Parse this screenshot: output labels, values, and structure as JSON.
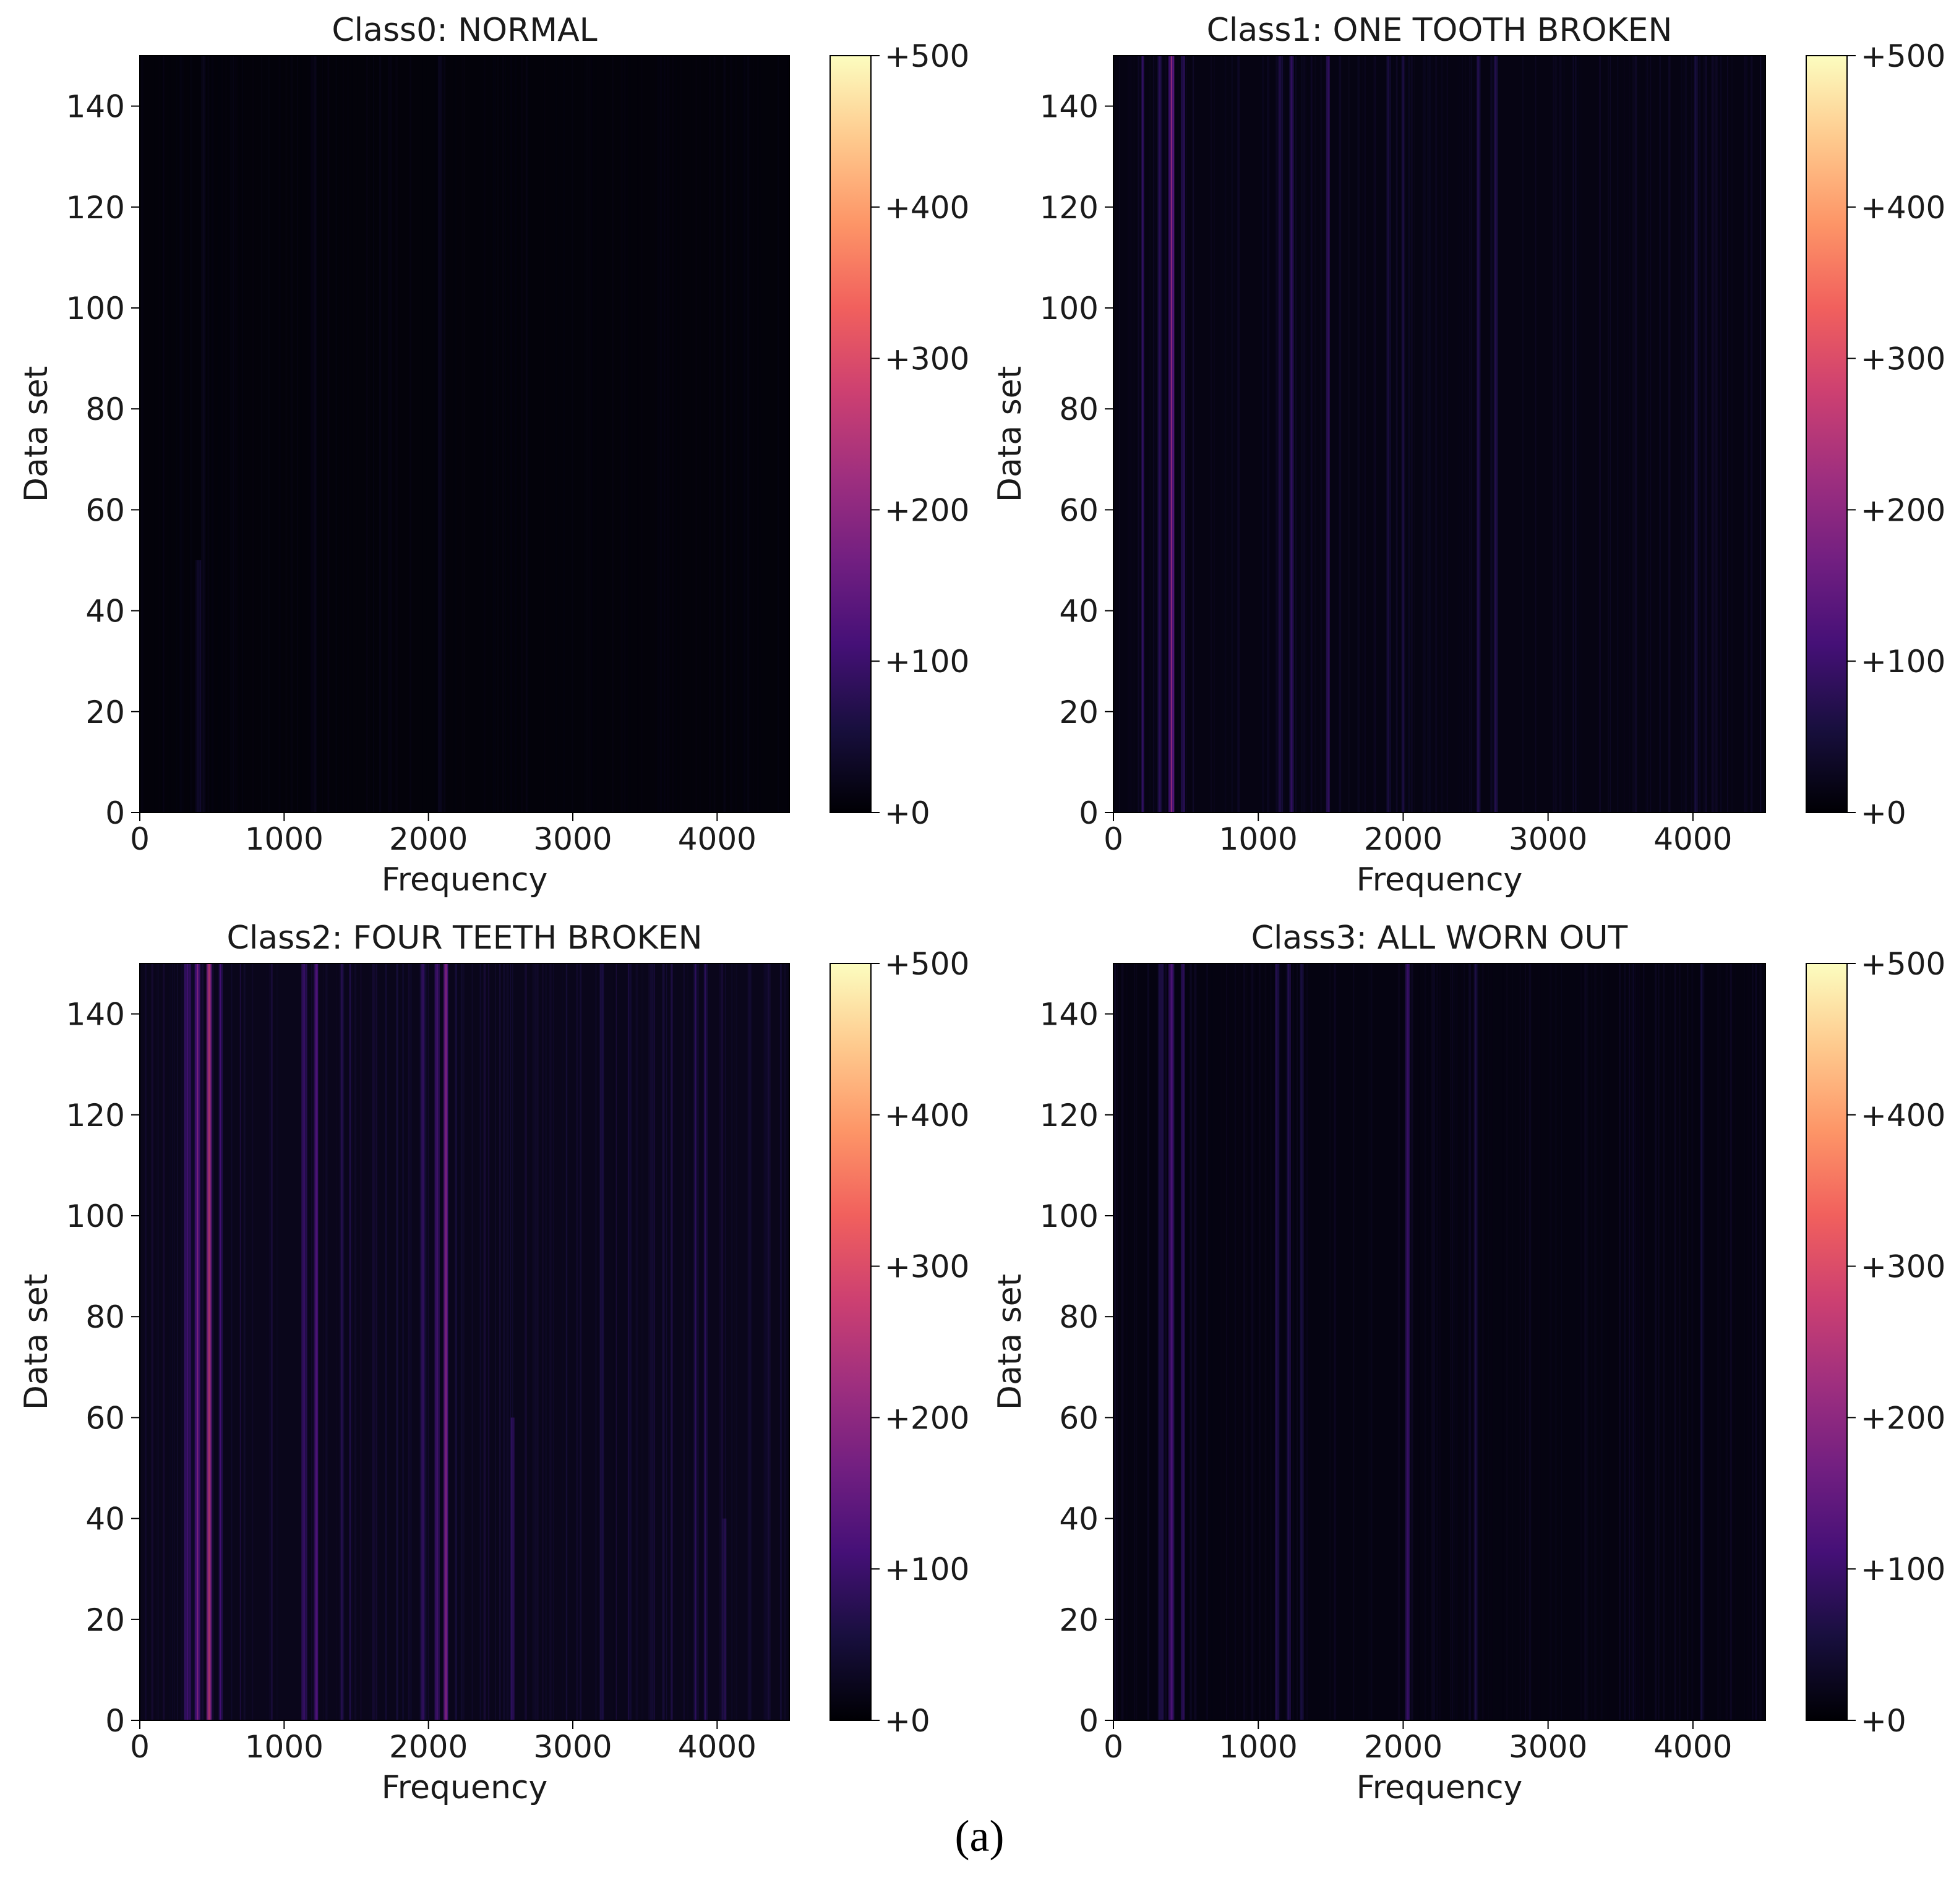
{
  "caption": "(a)",
  "colormap": {
    "name": "magma",
    "stops": [
      "#000004",
      "#180f3e",
      "#451077",
      "#721f81",
      "#9f2f7f",
      "#cd4071",
      "#f1605d",
      "#fd9567",
      "#fec98d",
      "#fcfdbf"
    ]
  },
  "chart_data": [
    {
      "type": "heatmap",
      "title": "Class0: NORMAL",
      "xlabel": "Frequency",
      "ylabel": "Data set",
      "xlim": [
        0,
        4500
      ],
      "ylim": [
        0,
        150
      ],
      "xticks": [
        0,
        1000,
        2000,
        3000,
        4000
      ],
      "yticks": [
        0,
        20,
        40,
        60,
        80,
        100,
        120,
        140
      ],
      "color_range": [
        0,
        500
      ],
      "colorbar_ticks": [
        "+0",
        "+100",
        "+200",
        "+300",
        "+400",
        "+500"
      ],
      "background_level": 6,
      "bands": [
        {
          "freq": 410,
          "width": 50,
          "level": 50,
          "ymax": 50
        },
        {
          "freq": 440,
          "width": 30,
          "level": 35,
          "ymax": 150
        },
        {
          "freq": 1210,
          "width": 25,
          "level": 30,
          "ymax": 150
        },
        {
          "freq": 2080,
          "width": 30,
          "level": 35,
          "ymax": 150
        }
      ]
    },
    {
      "type": "heatmap",
      "title": "Class1: ONE TOOTH BROKEN",
      "xlabel": "Frequency",
      "ylabel": "Data set",
      "xlim": [
        0,
        4500
      ],
      "ylim": [
        0,
        150
      ],
      "xticks": [
        0,
        1000,
        2000,
        3000,
        4000
      ],
      "yticks": [
        0,
        20,
        40,
        60,
        80,
        100,
        120,
        140
      ],
      "color_range": [
        0,
        500
      ],
      "colorbar_ticks": [
        "+0",
        "+100",
        "+200",
        "+300",
        "+400",
        "+500"
      ],
      "background_level": 14,
      "bands": [
        {
          "freq": 200,
          "width": 20,
          "level": 110,
          "ymax": 150
        },
        {
          "freq": 320,
          "width": 30,
          "level": 90,
          "ymax": 150
        },
        {
          "freq": 400,
          "width": 40,
          "level": 230,
          "ymax": 150
        },
        {
          "freq": 480,
          "width": 30,
          "level": 110,
          "ymax": 150
        },
        {
          "freq": 1150,
          "width": 40,
          "level": 80,
          "ymax": 150
        },
        {
          "freq": 1230,
          "width": 30,
          "level": 100,
          "ymax": 150
        },
        {
          "freq": 1480,
          "width": 25,
          "level": 110,
          "ymax": 150
        },
        {
          "freq": 1900,
          "width": 30,
          "level": 70,
          "ymax": 150
        },
        {
          "freq": 2000,
          "width": 25,
          "level": 75,
          "ymax": 150
        },
        {
          "freq": 2520,
          "width": 25,
          "level": 90,
          "ymax": 150
        },
        {
          "freq": 2640,
          "width": 30,
          "level": 100,
          "ymax": 150
        },
        {
          "freq": 4020,
          "width": 25,
          "level": 80,
          "ymax": 150
        }
      ]
    },
    {
      "type": "heatmap",
      "title": "Class2: FOUR TEETH BROKEN",
      "xlabel": "Frequency",
      "ylabel": "Data set",
      "xlim": [
        0,
        4500
      ],
      "ylim": [
        0,
        150
      ],
      "xticks": [
        0,
        1000,
        2000,
        3000,
        4000
      ],
      "yticks": [
        0,
        20,
        40,
        60,
        80,
        100,
        120,
        140
      ],
      "color_range": [
        0,
        500
      ],
      "colorbar_ticks": [
        "+0",
        "+100",
        "+200",
        "+300",
        "+400",
        "+500"
      ],
      "background_level": 22,
      "bands": [
        {
          "freq": 330,
          "width": 50,
          "level": 130,
          "ymax": 150
        },
        {
          "freq": 400,
          "width": 40,
          "level": 220,
          "ymax": 150
        },
        {
          "freq": 480,
          "width": 35,
          "level": 300,
          "ymax": 150
        },
        {
          "freq": 560,
          "width": 30,
          "level": 120,
          "ymax": 150
        },
        {
          "freq": 1140,
          "width": 40,
          "level": 120,
          "ymax": 150
        },
        {
          "freq": 1220,
          "width": 30,
          "level": 160,
          "ymax": 150
        },
        {
          "freq": 1400,
          "width": 30,
          "level": 90,
          "ymax": 150
        },
        {
          "freq": 1960,
          "width": 40,
          "level": 110,
          "ymax": 150
        },
        {
          "freq": 2060,
          "width": 35,
          "level": 150,
          "ymax": 150
        },
        {
          "freq": 2120,
          "width": 30,
          "level": 220,
          "ymax": 150
        },
        {
          "freq": 2580,
          "width": 30,
          "level": 120,
          "ymax": 60
        },
        {
          "freq": 3200,
          "width": 30,
          "level": 90,
          "ymax": 150
        },
        {
          "freq": 3850,
          "width": 25,
          "level": 100,
          "ymax": 150
        },
        {
          "freq": 3920,
          "width": 25,
          "level": 90,
          "ymax": 150
        },
        {
          "freq": 4050,
          "width": 30,
          "level": 120,
          "ymax": 40
        }
      ]
    },
    {
      "type": "heatmap",
      "title": "Class3: ALL WORN OUT",
      "xlabel": "Frequency",
      "ylabel": "Data set",
      "xlim": [
        0,
        4500
      ],
      "ylim": [
        0,
        150
      ],
      "xticks": [
        0,
        1000,
        2000,
        3000,
        4000
      ],
      "yticks": [
        0,
        20,
        40,
        60,
        80,
        100,
        120,
        140
      ],
      "color_range": [
        0,
        500
      ],
      "colorbar_ticks": [
        "+0",
        "+100",
        "+200",
        "+300",
        "+400",
        "+500"
      ],
      "background_level": 12,
      "bands": [
        {
          "freq": 330,
          "width": 40,
          "level": 90,
          "ymax": 150
        },
        {
          "freq": 400,
          "width": 40,
          "level": 180,
          "ymax": 150
        },
        {
          "freq": 480,
          "width": 30,
          "level": 110,
          "ymax": 150
        },
        {
          "freq": 1130,
          "width": 30,
          "level": 90,
          "ymax": 150
        },
        {
          "freq": 1210,
          "width": 25,
          "level": 110,
          "ymax": 150
        },
        {
          "freq": 1300,
          "width": 25,
          "level": 80,
          "ymax": 150
        },
        {
          "freq": 2030,
          "width": 30,
          "level": 140,
          "ymax": 150
        },
        {
          "freq": 2500,
          "width": 25,
          "level": 70,
          "ymax": 150
        },
        {
          "freq": 4060,
          "width": 20,
          "level": 60,
          "ymax": 150
        }
      ]
    }
  ]
}
